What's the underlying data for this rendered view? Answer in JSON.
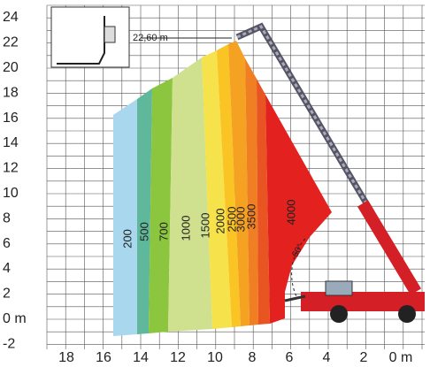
{
  "y_axis": {
    "labels": [
      "24",
      "22",
      "20",
      "18",
      "16",
      "14",
      "12",
      "10",
      "8",
      "6",
      "4",
      "2",
      "0 m",
      "-2"
    ]
  },
  "x_axis": {
    "labels": [
      "18",
      "16",
      "14",
      "12",
      "10",
      "8",
      "6",
      "4",
      "2",
      "0 m"
    ]
  },
  "height_annotation": "22,60 m",
  "zones": [
    "200",
    "500",
    "700",
    "1000",
    "1500",
    "2000",
    "2500",
    "3000",
    "3500",
    "4000"
  ],
  "angle_label": "60°"
}
